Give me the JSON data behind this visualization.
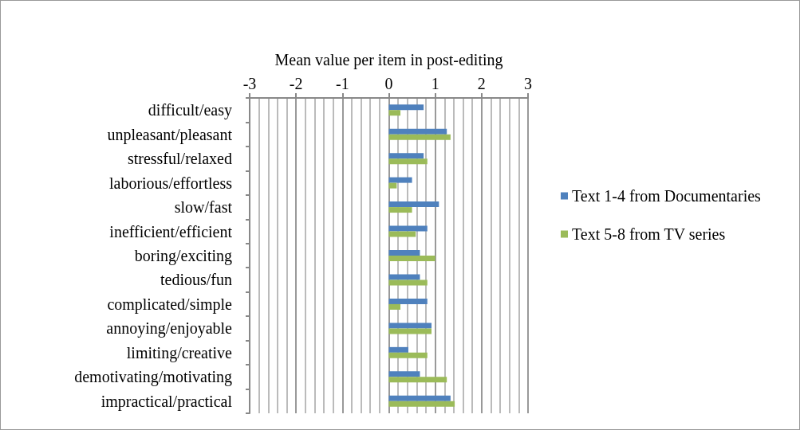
{
  "chart_data": {
    "type": "bar",
    "orientation": "horizontal",
    "xlabel": "Mean value per item in post-editing",
    "categories": [
      "difficult/easy",
      "unpleasant/pleasant",
      "stressful/relaxed",
      "laborious/effortless",
      "slow/fast",
      "inefficient/efficient",
      "boring/exciting",
      "tedious/fun",
      "complicated/simple",
      "annoying/enjoyable",
      "limiting/creative",
      "demotivating/motivating",
      "impractical/practical"
    ],
    "series": [
      {
        "name": "Text 1-4 from Documentaries",
        "color": "#4f81bd",
        "values": [
          0.75,
          1.25,
          0.75,
          0.5,
          1.08,
          0.83,
          0.67,
          0.67,
          0.83,
          0.92,
          0.42,
          0.67,
          1.33
        ]
      },
      {
        "name": "Text 5-8 from TV series",
        "color": "#9bbb59",
        "values": [
          0.25,
          1.33,
          0.83,
          0.17,
          0.5,
          0.58,
          1.0,
          0.83,
          0.25,
          0.92,
          0.83,
          1.25,
          1.42
        ]
      }
    ],
    "xlim": [
      -3,
      3
    ],
    "xticks": [
      -3,
      -2,
      -1,
      0,
      1,
      2,
      3
    ],
    "grid": "x",
    "legend": "right"
  }
}
